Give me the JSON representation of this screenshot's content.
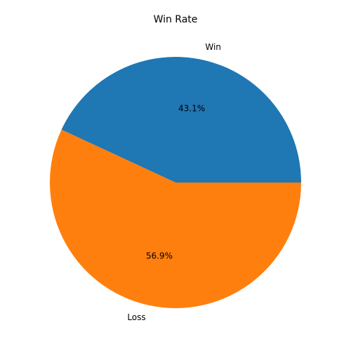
{
  "chart_data": {
    "type": "pie",
    "title": "Win Rate",
    "categories": [
      "Win",
      "Loss"
    ],
    "values": [
      43.1,
      56.9
    ],
    "value_labels": [
      "43.1%",
      "56.9%"
    ],
    "colors": [
      "#1f77b4",
      "#ff7f0e"
    ]
  }
}
